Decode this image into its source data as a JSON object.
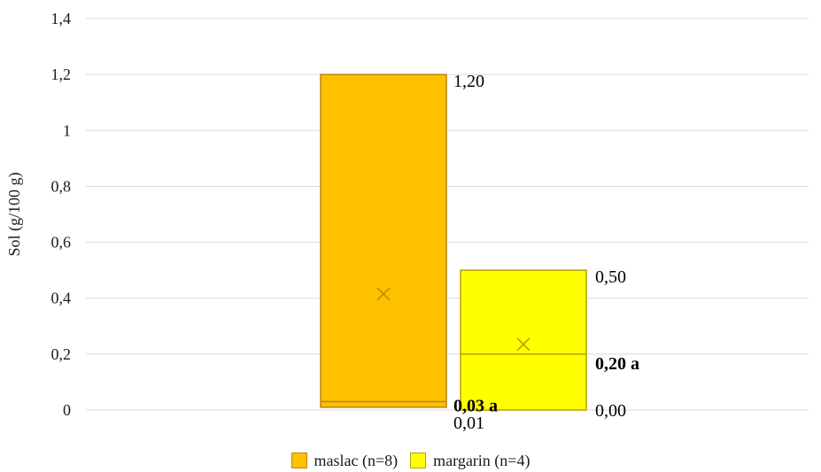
{
  "chart_data": {
    "type": "box",
    "ylabel": "Sol (g/100 g)",
    "ylim": [
      0,
      1.4
    ],
    "yticks": [
      0,
      0.2,
      0.4,
      0.6,
      0.8,
      1,
      1.2,
      1.4
    ],
    "ytick_labels": [
      "0",
      "0,2",
      "0,4",
      "0,6",
      "0,8",
      "1",
      "1,2",
      "1,4"
    ],
    "grid": true,
    "legend_position": "bottom",
    "series": [
      {
        "name": "maslac (n=8)",
        "color": "#FFC000",
        "border_color": "#B8860B",
        "min": 0.01,
        "max": 1.2,
        "median": 0.03,
        "mean": 0.415,
        "labels": {
          "max": "1,20",
          "median": "0,03 a",
          "min": "0,01"
        }
      },
      {
        "name": "margarin (n=4)",
        "color": "#FFFF00",
        "border_color": "#B8A000",
        "min": 0.0,
        "max": 0.5,
        "median": 0.2,
        "mean": 0.235,
        "labels": {
          "max": "0,50",
          "median": "0,20 a",
          "min": "0,00"
        }
      }
    ]
  }
}
